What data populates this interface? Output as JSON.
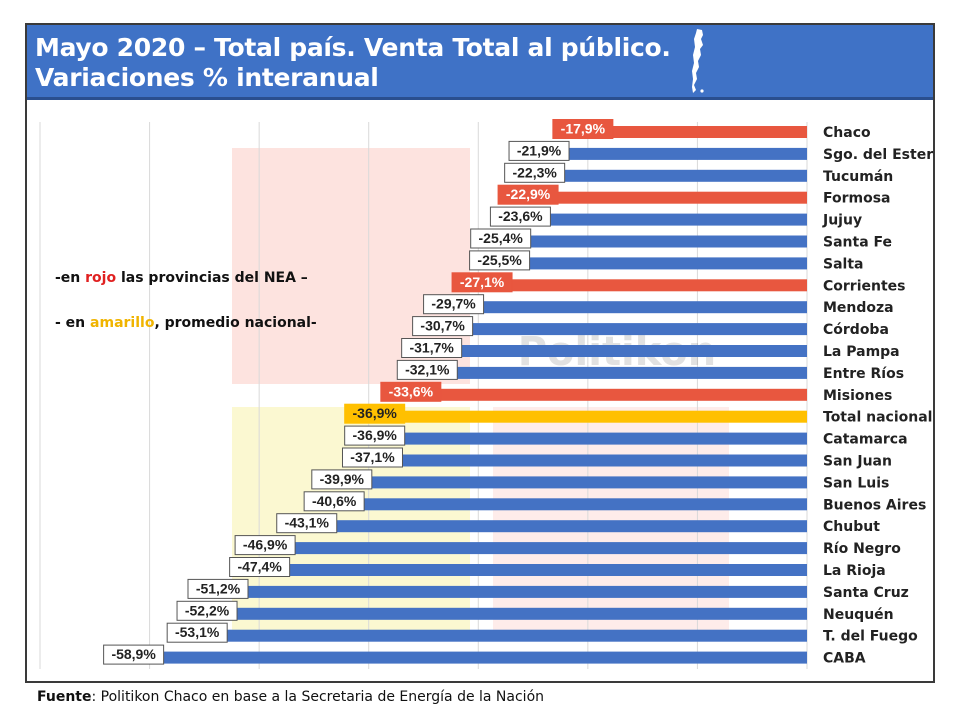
{
  "header": {
    "title_line1": "Mayo 2020 – Total país. Venta Total al público.",
    "title_line2": "Variaciones % interanual"
  },
  "legend_note": {
    "line1_prefix": "-en ",
    "line1_highlight": "rojo",
    "line1_suffix": " las provincias del NEA –",
    "line2_prefix": "- en ",
    "line2_highlight": "amarillo",
    "line2_suffix": ", promedio nacional-"
  },
  "watermark": "Politikon",
  "source": {
    "label": "Fuente",
    "text": ": Politikon Chaco en base a la Secretaria de Energía de la Nación"
  },
  "colors": {
    "nea": "#e8573f",
    "national": "#ffc000",
    "other": "#4472c4",
    "header": "#3f72c6"
  },
  "chart_data": {
    "type": "bar",
    "orientation": "horizontal",
    "categories": [
      "Chaco",
      "Sgo. del Estero",
      "Tucumán",
      "Formosa",
      "Jujuy",
      "Santa Fe",
      "Salta",
      "Corrientes",
      "Mendoza",
      "Córdoba",
      "La Pampa",
      "Entre Ríos",
      "Misiones",
      "Total nacional",
      "Catamarca",
      "San Juan",
      "San Luis",
      "Buenos Aires",
      "Chubut",
      "Río Negro",
      "La Rioja",
      "Santa Cruz",
      "Neuquén",
      "T. del Fuego",
      "CABA"
    ],
    "values": [
      -17.9,
      -21.9,
      -22.3,
      -22.9,
      -23.6,
      -25.4,
      -25.5,
      -27.1,
      -29.7,
      -30.7,
      -31.7,
      -32.1,
      -33.6,
      -36.9,
      -36.9,
      -37.1,
      -39.9,
      -40.6,
      -43.1,
      -46.9,
      -47.4,
      -51.2,
      -52.2,
      -53.1,
      -58.9
    ],
    "labels": [
      "-17,9%",
      "-21,9%",
      "-22,3%",
      "-22,9%",
      "-23,6%",
      "-25,4%",
      "-25,5%",
      "-27,1%",
      "-29,7%",
      "-30,7%",
      "-31,7%",
      "-32,1%",
      "-33,6%",
      "-36,9%",
      "-36,9%",
      "-37,1%",
      "-39,9%",
      "-40,6%",
      "-43,1%",
      "-46,9%",
      "-47,4%",
      "-51,2%",
      "-52,2%",
      "-53,1%",
      "-58,9%"
    ],
    "groups": [
      "nea",
      "other",
      "other",
      "nea",
      "other",
      "other",
      "other",
      "nea",
      "other",
      "other",
      "other",
      "other",
      "nea",
      "national",
      "other",
      "other",
      "other",
      "other",
      "other",
      "other",
      "other",
      "other",
      "other",
      "other",
      "other"
    ],
    "xlim": [
      -70,
      0
    ],
    "grid": true,
    "title": "Mayo 2020 – Total país. Venta Total al público. Variaciones % interanual"
  }
}
